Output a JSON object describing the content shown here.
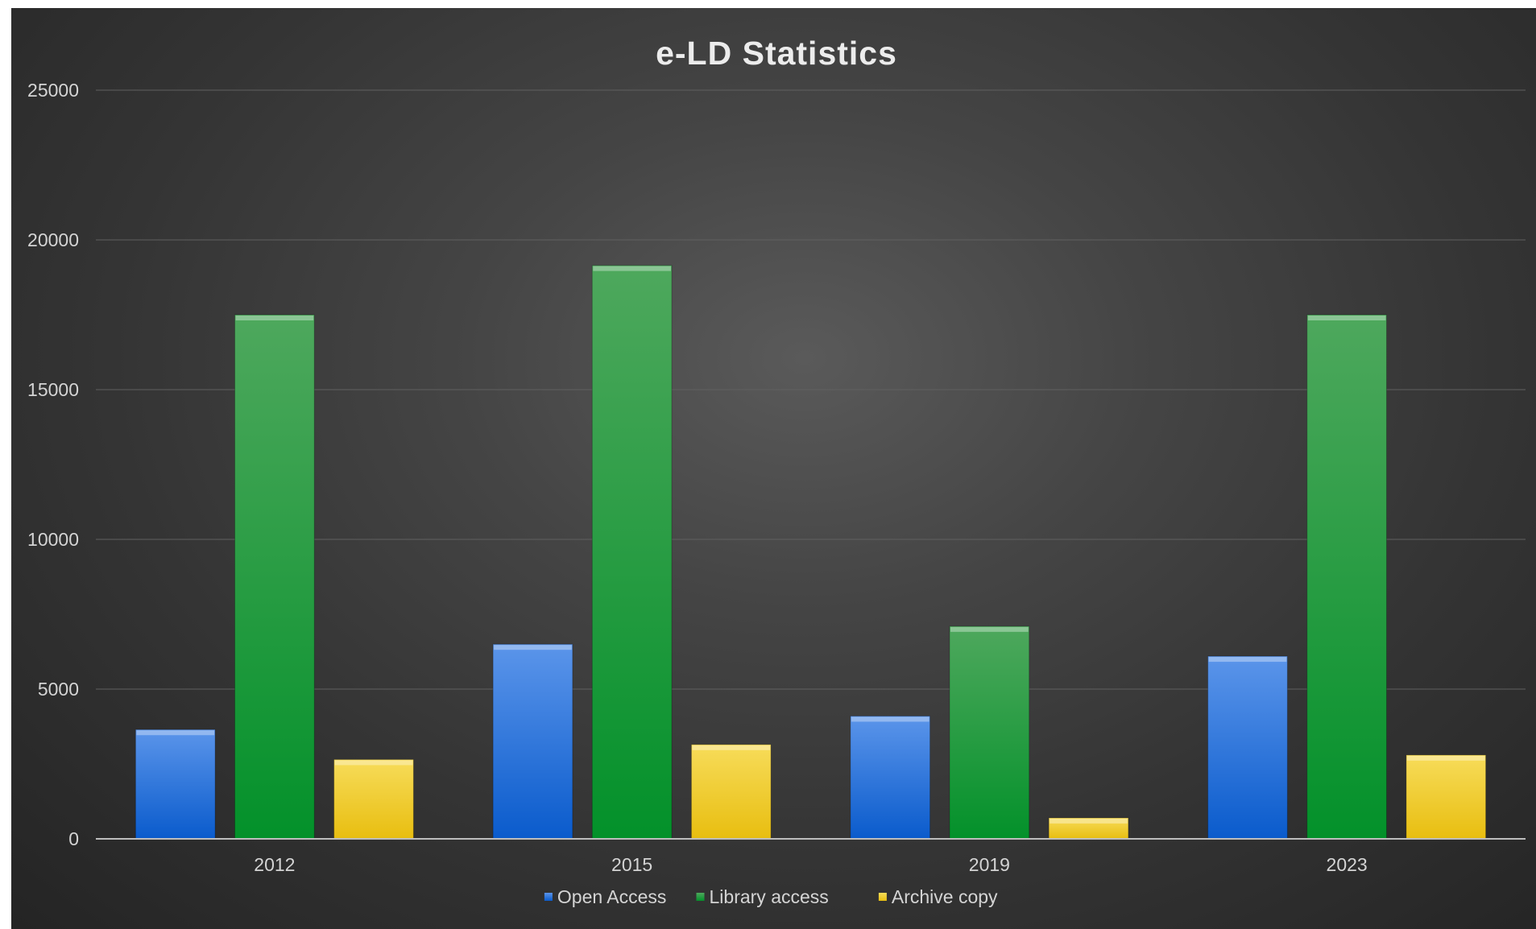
{
  "chart_data": {
    "type": "bar",
    "title": "e-LD Statistics",
    "xlabel": "",
    "ylabel": "",
    "categories": [
      "2012",
      "2015",
      "2019",
      "2023"
    ],
    "y_ticks": [
      "0",
      "5000",
      "10000",
      "15000",
      "20000",
      "25000"
    ],
    "ylim": [
      0,
      25000
    ],
    "grid": true,
    "legend_position": "bottom",
    "series": [
      {
        "name": "Open Access",
        "values": [
          3650,
          6500,
          4100,
          6100
        ],
        "color": "#1f6ad6"
      },
      {
        "name": "Library access",
        "values": [
          17500,
          19150,
          7100,
          17500
        ],
        "color": "#0d9a2a"
      },
      {
        "name": "Archive copy",
        "values": [
          2650,
          3150,
          700,
          2800
        ],
        "color": "#f2c81a"
      }
    ]
  }
}
